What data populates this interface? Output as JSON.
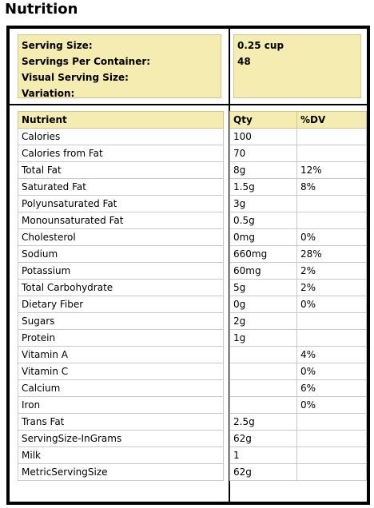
{
  "title": "Nutrition",
  "serving": {
    "labels": [
      "Serving Size:",
      "Servings Per Container:",
      "Visual Serving Size:",
      "Variation:"
    ],
    "values": [
      "0.25 cup",
      "48",
      "",
      ""
    ]
  },
  "table": {
    "headers": {
      "nutrient": "Nutrient",
      "qty": "Qty",
      "dv": "%DV"
    },
    "rows": [
      {
        "nutrient": "Calories",
        "qty": "100",
        "dv": ""
      },
      {
        "nutrient": "Calories from Fat",
        "qty": "70",
        "dv": ""
      },
      {
        "nutrient": "Total Fat",
        "qty": "8g",
        "dv": "12%"
      },
      {
        "nutrient": "Saturated Fat",
        "qty": "1.5g",
        "dv": "8%"
      },
      {
        "nutrient": "Polyunsaturated Fat",
        "qty": "3g",
        "dv": ""
      },
      {
        "nutrient": "Monounsaturated Fat",
        "qty": "0.5g",
        "dv": ""
      },
      {
        "nutrient": "Cholesterol",
        "qty": "0mg",
        "dv": "0%"
      },
      {
        "nutrient": "Sodium",
        "qty": "660mg",
        "dv": "28%"
      },
      {
        "nutrient": "Potassium",
        "qty": "60mg",
        "dv": "2%"
      },
      {
        "nutrient": "Total Carbohydrate",
        "qty": "5g",
        "dv": "2%"
      },
      {
        "nutrient": "Dietary Fiber",
        "qty": "0g",
        "dv": "0%"
      },
      {
        "nutrient": "Sugars",
        "qty": "2g",
        "dv": ""
      },
      {
        "nutrient": "Protein",
        "qty": "1g",
        "dv": ""
      },
      {
        "nutrient": "Vitamin A",
        "qty": "",
        "dv": "4%"
      },
      {
        "nutrient": "Vitamin C",
        "qty": "",
        "dv": "0%"
      },
      {
        "nutrient": "Calcium",
        "qty": "",
        "dv": "6%"
      },
      {
        "nutrient": "Iron",
        "qty": "",
        "dv": "0%"
      },
      {
        "nutrient": "Trans Fat",
        "qty": "2.5g",
        "dv": ""
      },
      {
        "nutrient": "ServingSize-InGrams",
        "qty": "62g",
        "dv": ""
      },
      {
        "nutrient": "Milk",
        "qty": "1",
        "dv": ""
      },
      {
        "nutrient": "MetricServingSize",
        "qty": "62g",
        "dv": ""
      }
    ]
  },
  "colors": {
    "header_fill": "#f4ecb0",
    "border": "#000000",
    "cell_border": "#c8c8c8"
  }
}
